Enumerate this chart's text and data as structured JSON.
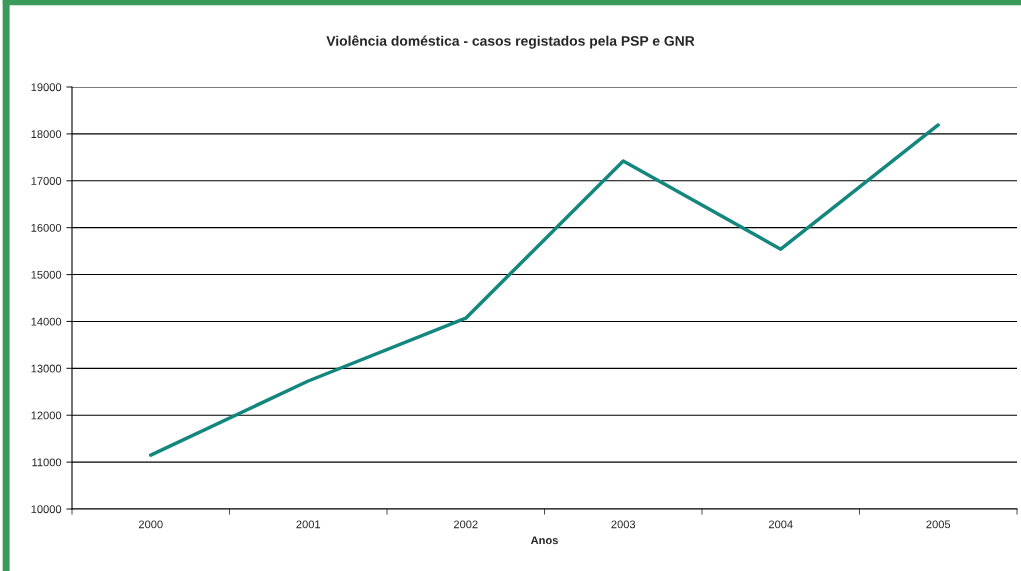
{
  "chart_data": {
    "type": "line",
    "title": "Violência doméstica - casos registados pela PSP e GNR",
    "xlabel": "Anos",
    "categories": [
      "2000",
      "2001",
      "2002",
      "2003",
      "2004",
      "2005"
    ],
    "series": [
      {
        "color": "#13867e",
        "values": [
          11150,
          12730,
          14070,
          17420,
          15540,
          18190
        ]
      }
    ],
    "ylim": [
      10000,
      19000
    ],
    "yticks": [
      10000,
      11000,
      12000,
      13000,
      14000,
      15000,
      16000,
      17000,
      18000,
      19000
    ],
    "grid": "y",
    "marker": "none",
    "line_style": "solid"
  }
}
